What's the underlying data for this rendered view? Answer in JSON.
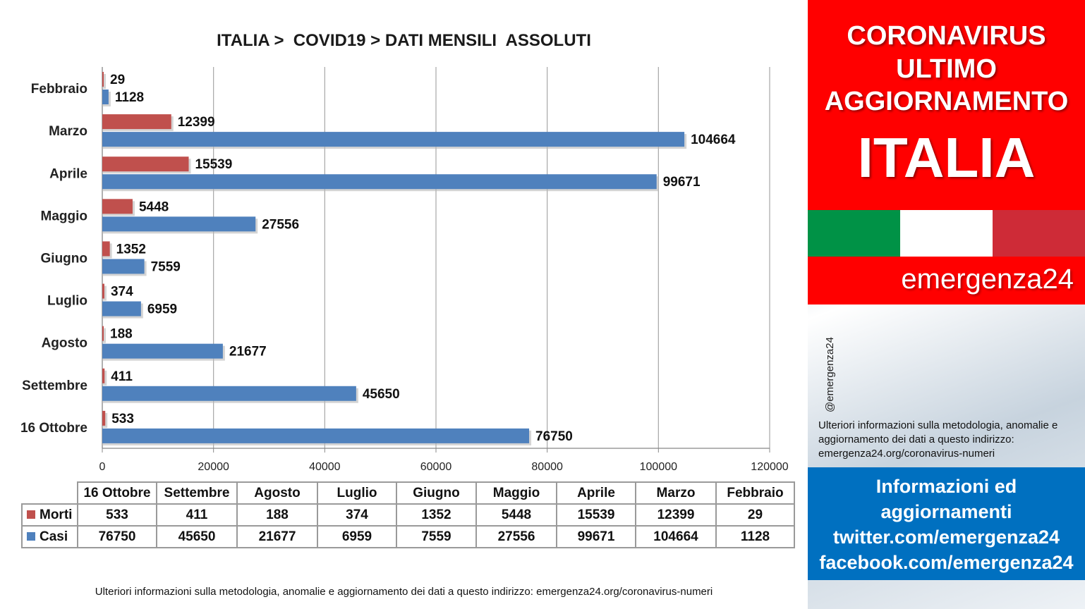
{
  "chart_data": {
    "type": "bar",
    "orientation": "horizontal",
    "title": "ITALIA >  COVID19 > DATI MENSILI  ASSOLUTI",
    "categories": [
      "Febbraio",
      "Marzo",
      "Aprile",
      "Maggio",
      "Giugno",
      "Luglio",
      "Agosto",
      "Settembre",
      "16 Ottobre"
    ],
    "series": [
      {
        "name": "Morti",
        "color": "#c0504d",
        "values": [
          29,
          12399,
          15539,
          5448,
          1352,
          374,
          188,
          411,
          533
        ]
      },
      {
        "name": "Casi",
        "color": "#4f81bd",
        "values": [
          1128,
          104664,
          99671,
          27556,
          7559,
          6959,
          21677,
          45650,
          76750
        ]
      }
    ],
    "xlim": [
      0,
      120000
    ],
    "ticks": [
      "0",
      "20000",
      "40000",
      "60000",
      "80000",
      "100000",
      "120000"
    ],
    "grid": true,
    "legend": "data-table"
  },
  "table": {
    "columns": [
      "16 Ottobre",
      "Settembre",
      "Agosto",
      "Luglio",
      "Giugno",
      "Maggio",
      "Aprile",
      "Marzo",
      "Febbraio"
    ],
    "rows": [
      {
        "label": "Morti",
        "color": "#c0504d",
        "values": [
          "533",
          "411",
          "188",
          "374",
          "1352",
          "5448",
          "15539",
          "12399",
          "29"
        ]
      },
      {
        "label": "Casi",
        "color": "#4f81bd",
        "values": [
          "76750",
          "45650",
          "21677",
          "6959",
          "7559",
          "27556",
          "99671",
          "104664",
          "1128"
        ]
      }
    ]
  },
  "footer_note": "Ulteriori informazioni sulla metodologia, anomalie e aggiornamento dei dati a questo indirizzo: emergenza24.org/coronavirus-numeri",
  "sidebar": {
    "line1": "CORONAVIRUS",
    "line2": "ULTIMO",
    "line3": "AGGIORNAMENTO",
    "country": "ITALIA",
    "flag_colors": [
      "#009246",
      "#ffffff",
      "#ce2b37"
    ],
    "brand": "emergenza24",
    "handle": "@emergenza24",
    "note": "Ulteriori informazioni sulla metodologia, anomalie e aggiornamento dei dati a questo indirizzo: emergenza24.org/coronavirus-numeri",
    "info1": "Informazioni ed",
    "info2": "aggiornamenti",
    "info3": "twitter.com/emergenza24",
    "info4": "facebook.com/emergenza24"
  }
}
